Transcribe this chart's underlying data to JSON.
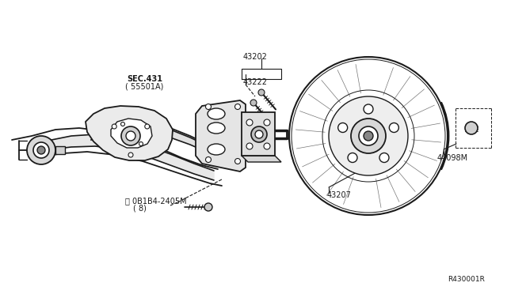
{
  "bg_color": "#ffffff",
  "line_color": "#1a1a1a",
  "text_color": "#1a1a1a",
  "part_number_ref": "R430001R",
  "labels": {
    "bolt_top": "Ⓑ 0B1B4-2405M",
    "bolt_top_sub": "( 8)",
    "sec_label": "SEC.431",
    "sec_sub": "( 55501A)",
    "part_43207": "43207",
    "part_44098M": "44098M",
    "part_43222": "43222",
    "part_43202": "43202"
  },
  "figsize": [
    6.4,
    3.72
  ],
  "dpi": 100
}
